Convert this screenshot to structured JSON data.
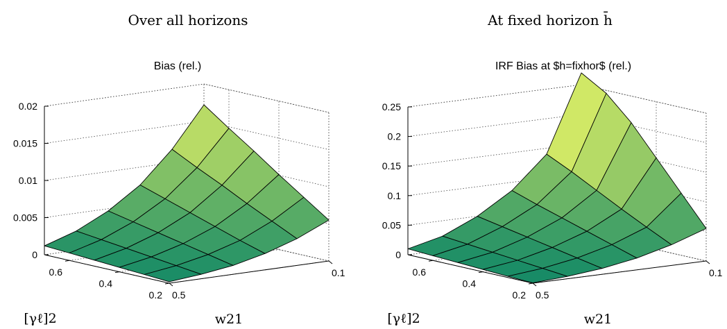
{
  "figure": {
    "panel_headings": [
      "Over all horizons",
      "At fixed horizon h̄"
    ]
  },
  "chart_data": [
    {
      "type": "surface",
      "title": "Bias (rel.)",
      "xlabel": "w21",
      "ylabel": "[γℓ]2",
      "zlim": [
        0,
        0.02
      ],
      "z_ticks": [
        "0",
        "0.005",
        "0.01",
        "0.015",
        "0.02"
      ],
      "x_ticks": [
        "0.1",
        "0.5"
      ],
      "y_ticks": [
        "0.2",
        "0.4",
        "0.6"
      ],
      "grid": true,
      "colormap": "summer",
      "x": [
        0.5,
        0.42,
        0.34,
        0.26,
        0.18,
        0.1
      ],
      "y": [
        0.2,
        0.3,
        0.4,
        0.5,
        0.6,
        0.7
      ],
      "z": [
        [
          0.0002,
          0.0006,
          0.0012,
          0.0022,
          0.0036,
          0.0055
        ],
        [
          0.0004,
          0.001,
          0.0019,
          0.0032,
          0.0052,
          0.0078
        ],
        [
          0.0006,
          0.0014,
          0.0026,
          0.0043,
          0.0068,
          0.0101
        ],
        [
          0.0008,
          0.0018,
          0.0033,
          0.0054,
          0.0085,
          0.0125
        ],
        [
          0.001,
          0.0022,
          0.004,
          0.0065,
          0.0101,
          0.0148
        ],
        [
          0.0012,
          0.0026,
          0.0047,
          0.0076,
          0.0118,
          0.0172
        ]
      ]
    },
    {
      "type": "surface",
      "title": "IRF Bias at $h=fixhor$ (rel.)",
      "xlabel": "w21",
      "ylabel": "[γℓ]2",
      "zlim": [
        0,
        0.25
      ],
      "z_ticks": [
        "0",
        "0.05",
        "0.1",
        "0.15",
        "0.2",
        "0.25"
      ],
      "x_ticks": [
        "0.1",
        "0.5"
      ],
      "y_ticks": [
        "0.2",
        "0.4",
        "0.6"
      ],
      "grid": true,
      "colormap": "summer",
      "x": [
        0.5,
        0.42,
        0.34,
        0.26,
        0.18,
        0.1
      ],
      "y": [
        0.2,
        0.3,
        0.4,
        0.5,
        0.6,
        0.7
      ],
      "z": [
        [
          0.0005,
          0.004,
          0.01,
          0.02,
          0.035,
          0.055
        ],
        [
          0.002,
          0.008,
          0.018,
          0.033,
          0.055,
          0.105
        ],
        [
          0.004,
          0.012,
          0.026,
          0.046,
          0.076,
          0.155
        ],
        [
          0.006,
          0.016,
          0.034,
          0.059,
          0.098,
          0.205
        ],
        [
          0.008,
          0.02,
          0.042,
          0.072,
          0.12,
          0.245
        ],
        [
          0.01,
          0.024,
          0.05,
          0.086,
          0.14,
          0.27
        ]
      ]
    }
  ]
}
